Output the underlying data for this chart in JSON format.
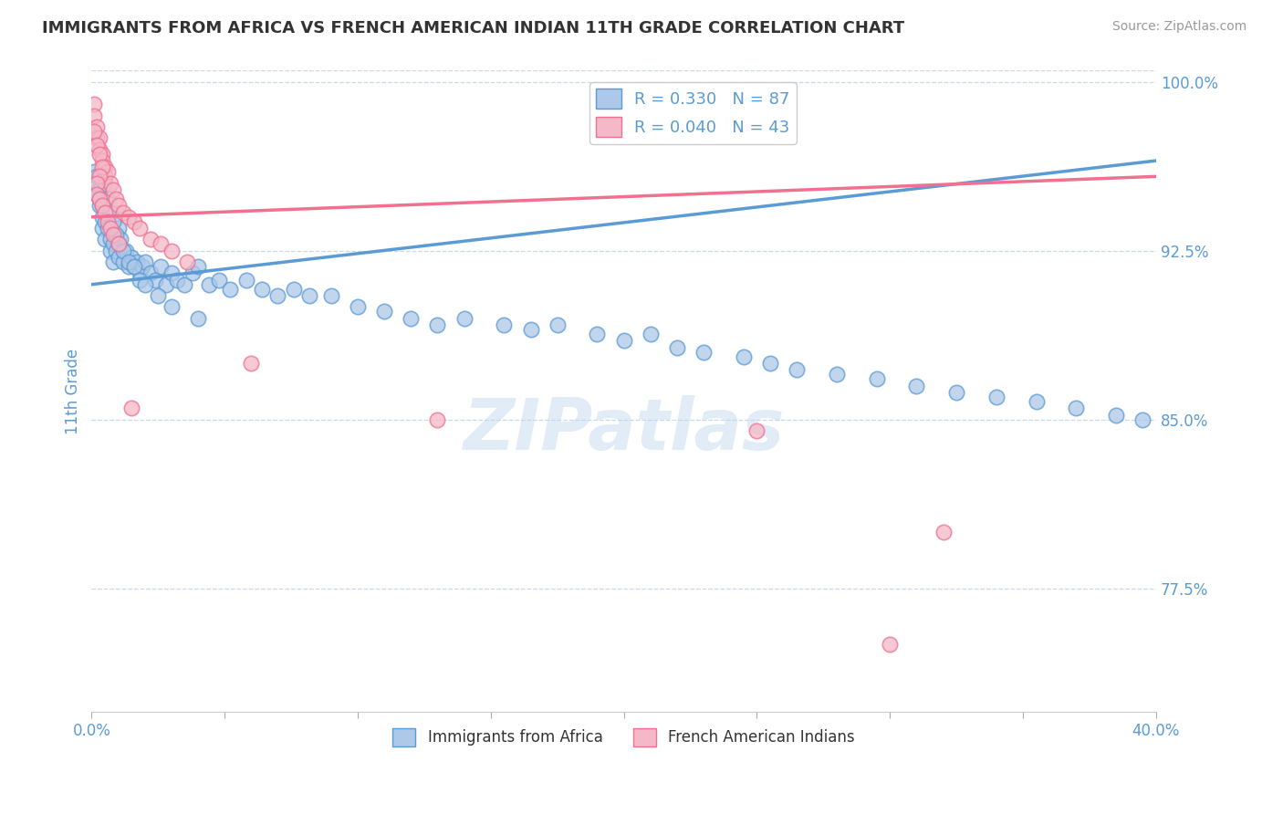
{
  "title": "IMMIGRANTS FROM AFRICA VS FRENCH AMERICAN INDIAN 11TH GRADE CORRELATION CHART",
  "source_text": "Source: ZipAtlas.com",
  "ylabel": "11th Grade",
  "x_min": 0.0,
  "x_max": 0.4,
  "y_min": 0.72,
  "y_max": 1.005,
  "y_ticks": [
    0.775,
    0.85,
    0.925,
    1.0
  ],
  "y_tick_labels": [
    "77.5%",
    "85.0%",
    "92.5%",
    "100.0%"
  ],
  "x_tick_labels": [
    "0.0%",
    "",
    "",
    "",
    "",
    "",
    "",
    "",
    "40.0%"
  ],
  "legend_entries": [
    {
      "label": "R = 0.330   N = 87",
      "color": "#adc8e8"
    },
    {
      "label": "R = 0.040   N = 43",
      "color": "#f4b8c8"
    }
  ],
  "legend_bottom": [
    "Immigrants from Africa",
    "French American Indians"
  ],
  "blue_color": "#5b9bd5",
  "pink_color": "#f07090",
  "blue_dot_fill": "#adc8e8",
  "pink_dot_fill": "#f4b8c8",
  "watermark": "ZIPatlas",
  "blue_scatter_x": [
    0.001,
    0.001,
    0.002,
    0.002,
    0.003,
    0.003,
    0.003,
    0.004,
    0.004,
    0.004,
    0.005,
    0.005,
    0.006,
    0.007,
    0.007,
    0.008,
    0.008,
    0.009,
    0.01,
    0.01,
    0.011,
    0.012,
    0.013,
    0.014,
    0.015,
    0.016,
    0.017,
    0.018,
    0.019,
    0.02,
    0.022,
    0.024,
    0.026,
    0.028,
    0.03,
    0.032,
    0.035,
    0.038,
    0.04,
    0.044,
    0.048,
    0.052,
    0.058,
    0.064,
    0.07,
    0.076,
    0.082,
    0.09,
    0.1,
    0.11,
    0.12,
    0.13,
    0.14,
    0.155,
    0.165,
    0.175,
    0.19,
    0.2,
    0.21,
    0.22,
    0.23,
    0.245,
    0.255,
    0.265,
    0.28,
    0.295,
    0.31,
    0.325,
    0.34,
    0.355,
    0.37,
    0.385,
    0.395,
    0.005,
    0.006,
    0.007,
    0.008,
    0.009,
    0.01,
    0.012,
    0.014,
    0.016,
    0.018,
    0.02,
    0.025,
    0.03,
    0.04
  ],
  "blue_scatter_y": [
    0.96,
    0.955,
    0.958,
    0.95,
    0.952,
    0.948,
    0.945,
    0.94,
    0.945,
    0.935,
    0.938,
    0.93,
    0.935,
    0.93,
    0.925,
    0.928,
    0.92,
    0.925,
    0.935,
    0.922,
    0.93,
    0.92,
    0.925,
    0.918,
    0.922,
    0.918,
    0.92,
    0.915,
    0.918,
    0.92,
    0.915,
    0.912,
    0.918,
    0.91,
    0.915,
    0.912,
    0.91,
    0.915,
    0.918,
    0.91,
    0.912,
    0.908,
    0.912,
    0.908,
    0.905,
    0.908,
    0.905,
    0.905,
    0.9,
    0.898,
    0.895,
    0.892,
    0.895,
    0.892,
    0.89,
    0.892,
    0.888,
    0.885,
    0.888,
    0.882,
    0.88,
    0.878,
    0.875,
    0.872,
    0.87,
    0.868,
    0.865,
    0.862,
    0.86,
    0.858,
    0.855,
    0.852,
    0.85,
    0.955,
    0.948,
    0.942,
    0.938,
    0.932,
    0.928,
    0.925,
    0.92,
    0.918,
    0.912,
    0.91,
    0.905,
    0.9,
    0.895
  ],
  "pink_scatter_x": [
    0.001,
    0.001,
    0.002,
    0.002,
    0.003,
    0.003,
    0.004,
    0.004,
    0.005,
    0.005,
    0.006,
    0.007,
    0.008,
    0.009,
    0.01,
    0.012,
    0.014,
    0.016,
    0.018,
    0.022,
    0.026,
    0.03,
    0.036,
    0.001,
    0.002,
    0.003,
    0.004,
    0.003,
    0.002,
    0.002,
    0.003,
    0.004,
    0.005,
    0.006,
    0.007,
    0.008,
    0.01,
    0.015,
    0.06,
    0.13,
    0.25,
    0.3,
    0.32
  ],
  "pink_scatter_y": [
    0.99,
    0.985,
    0.98,
    0.975,
    0.975,
    0.97,
    0.968,
    0.965,
    0.962,
    0.958,
    0.96,
    0.955,
    0.952,
    0.948,
    0.945,
    0.942,
    0.94,
    0.938,
    0.935,
    0.93,
    0.928,
    0.925,
    0.92,
    0.978,
    0.972,
    0.968,
    0.962,
    0.958,
    0.955,
    0.95,
    0.948,
    0.945,
    0.942,
    0.938,
    0.935,
    0.932,
    0.928,
    0.855,
    0.875,
    0.85,
    0.845,
    0.75,
    0.8
  ],
  "blue_line_x": [
    0.0,
    0.4
  ],
  "blue_line_y": [
    0.91,
    0.965
  ],
  "pink_line_x": [
    0.0,
    0.4
  ],
  "pink_line_y": [
    0.94,
    0.958
  ],
  "bg_color": "#ffffff",
  "grid_color": "#c8d8ec",
  "title_color": "#333333",
  "tick_label_color": "#5b9bd5",
  "axis_label_color": "#5b9bd5"
}
